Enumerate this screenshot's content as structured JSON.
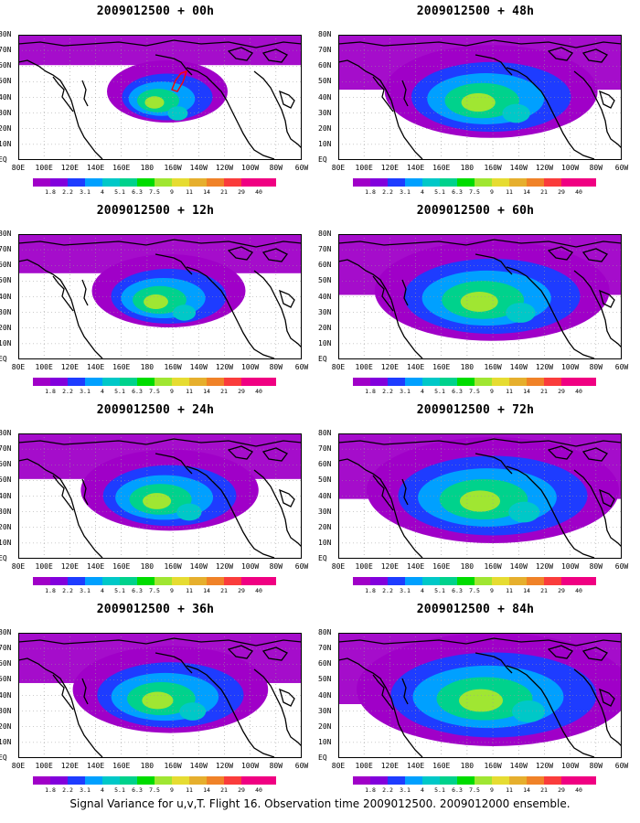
{
  "panels": [
    {
      "title": "2009012500 + 00h",
      "spread": 0.3
    },
    {
      "title": "2009012500 + 48h",
      "spread": 0.72
    },
    {
      "title": "2009012500 + 12h",
      "spread": 0.45
    },
    {
      "title": "2009012500 + 60h",
      "spread": 0.82
    },
    {
      "title": "2009012500 + 24h",
      "spread": 0.56
    },
    {
      "title": "2009012500 + 72h",
      "spread": 0.9
    },
    {
      "title": "2009012500 + 36h",
      "spread": 0.64
    },
    {
      "title": "2009012500 + 84h",
      "spread": 1.0
    }
  ],
  "lat_labels": [
    "80N",
    "70N",
    "60N",
    "50N",
    "40N",
    "30N",
    "20N",
    "10N",
    "EQ"
  ],
  "lon_labels": [
    "80E",
    "100E",
    "120E",
    "140E",
    "160E",
    "180",
    "160W",
    "140W",
    "120W",
    "100W",
    "80W",
    "60W"
  ],
  "colorbar": {
    "labels": [
      "1.8",
      "2.2",
      "3.1",
      "4",
      "5.1",
      "6.3",
      "7.5",
      "9",
      "11",
      "14",
      "21",
      "29",
      "40"
    ],
    "colors": [
      "#a000c8",
      "#8200dc",
      "#1e3cff",
      "#00a0ff",
      "#00c8c8",
      "#00d28c",
      "#00dc00",
      "#a0e632",
      "#e6dc32",
      "#e6af2d",
      "#f08228",
      "#fa3c3c",
      "#f00082"
    ]
  },
  "caption": "Signal Variance for u,v,T. Flight 16. Observation time 2009012500. 2009012000 ensemble."
}
